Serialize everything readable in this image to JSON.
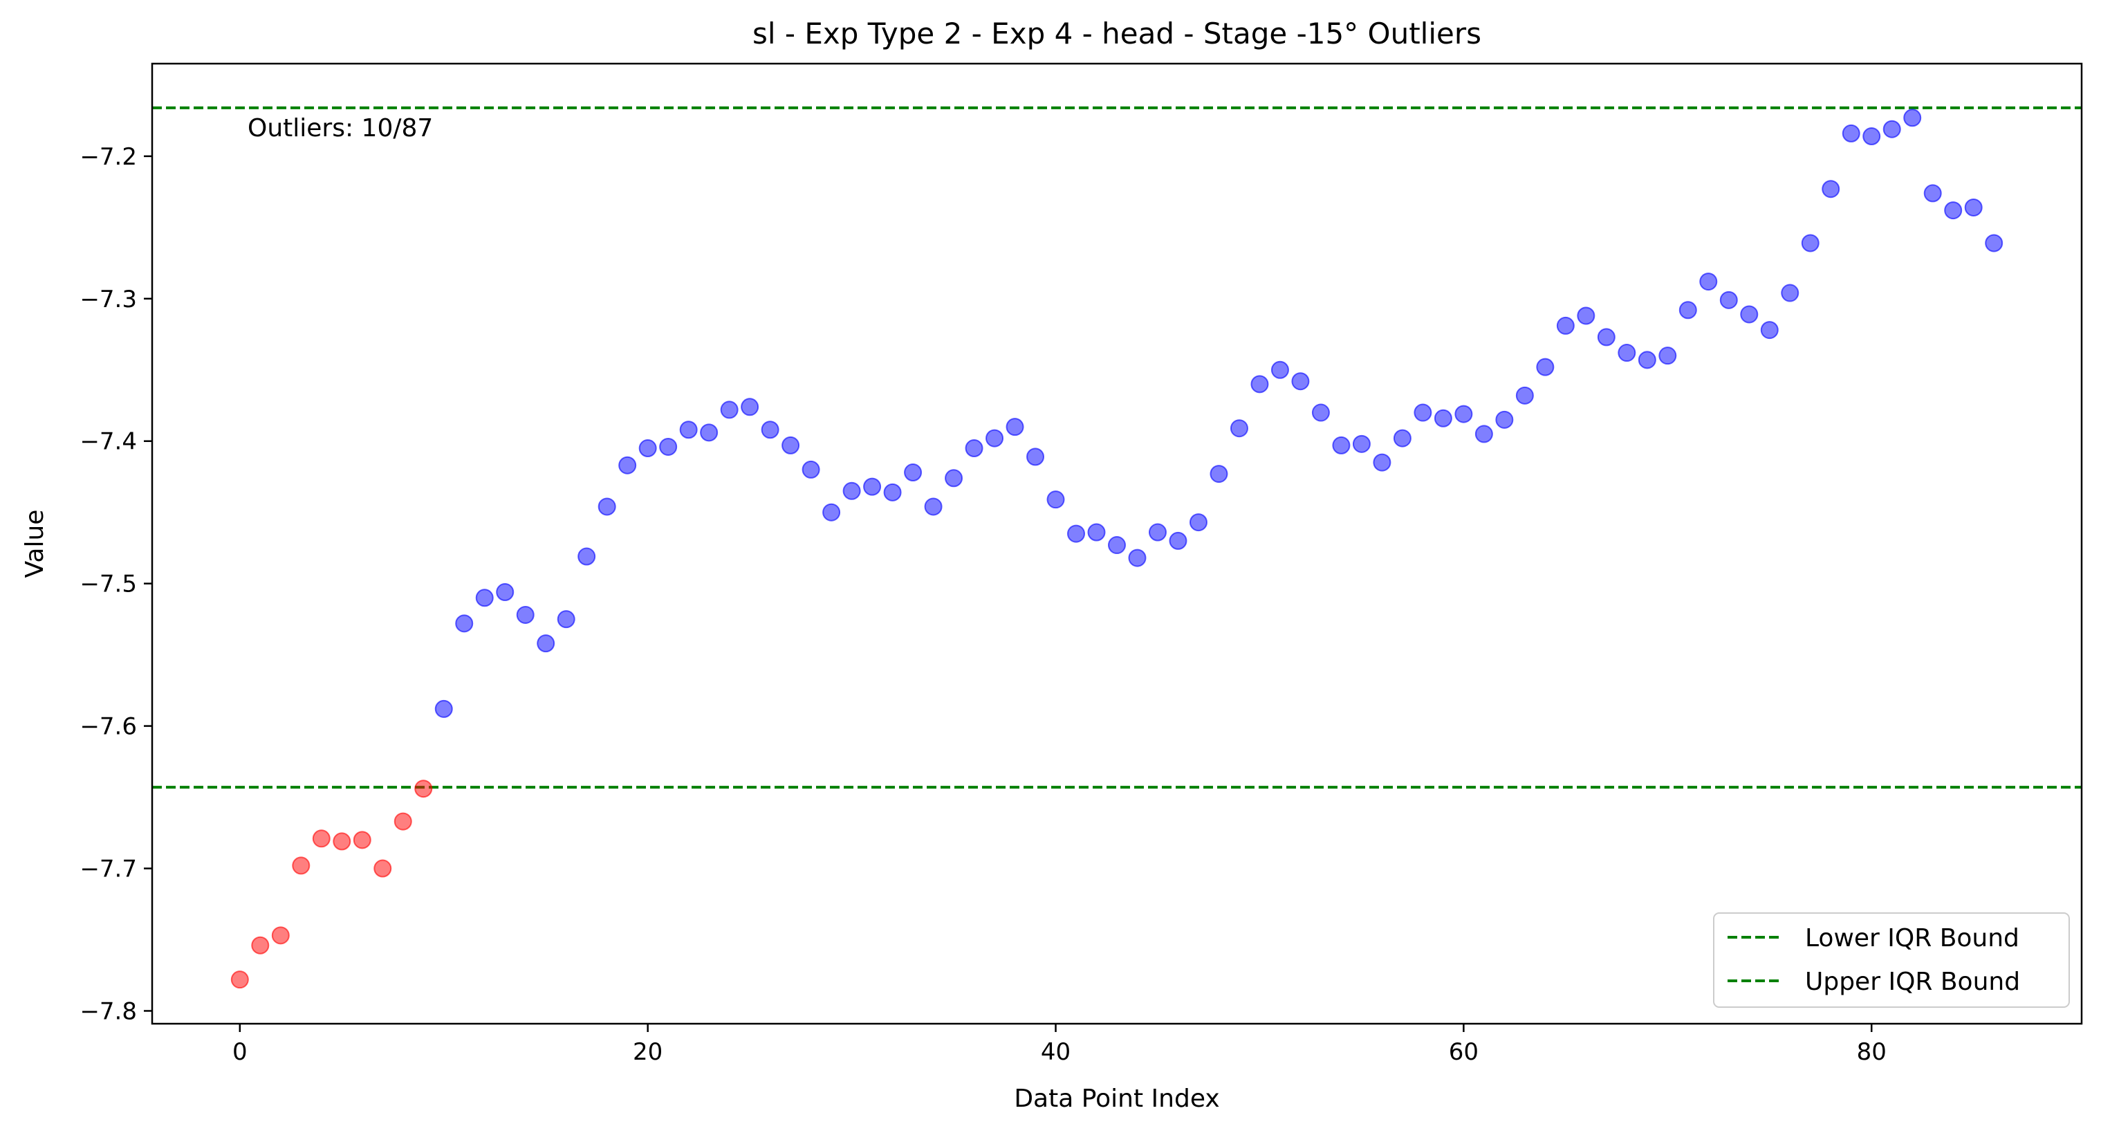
{
  "chart_data": {
    "type": "scatter",
    "title": "sl - Exp Type 2 - Exp 4 - head - Stage -15° Outliers",
    "xlabel": "Data Point Index",
    "ylabel": "Value",
    "xlim": [
      -4.3,
      90.3
    ],
    "ylim": [
      -7.809,
      -7.135
    ],
    "x_ticks": [
      0,
      20,
      40,
      60,
      80
    ],
    "y_ticks": [
      -7.8,
      -7.7,
      -7.6,
      -7.5,
      -7.4,
      -7.3,
      -7.2
    ],
    "x_tick_labels": [
      "0",
      "20",
      "40",
      "60",
      "80"
    ],
    "y_tick_labels": [
      "−7.8",
      "−7.7",
      "−7.6",
      "−7.5",
      "−7.4",
      "−7.3",
      "−7.2"
    ],
    "annotation": "Outliers: 10/87",
    "colors": {
      "outlier": "#ff0000",
      "normal": "#0000ff",
      "bound": "#008000"
    },
    "bounds": [
      {
        "name": "Lower IQR Bound",
        "value": -7.643
      },
      {
        "name": "Upper IQR Bound",
        "value": -7.166
      }
    ],
    "legend_position": "lower-right",
    "grid": false,
    "series": [
      {
        "name": "",
        "role": "outlier",
        "x": [
          0,
          1,
          2,
          3,
          4,
          5,
          6,
          7,
          8,
          9
        ],
        "y": [
          -7.778,
          -7.754,
          -7.747,
          -7.698,
          -7.679,
          -7.681,
          -7.68,
          -7.7,
          -7.667,
          -7.644
        ]
      },
      {
        "name": "",
        "role": "normal",
        "x": [
          10,
          11,
          12,
          13,
          14,
          15,
          16,
          17,
          18,
          19,
          20,
          21,
          22,
          23,
          24,
          25,
          26,
          27,
          28,
          29,
          30,
          31,
          32,
          33,
          34,
          35,
          36,
          37,
          38,
          39,
          40,
          41,
          42,
          43,
          44,
          45,
          46,
          47,
          48,
          49,
          50,
          51,
          52,
          53,
          54,
          55,
          56,
          57,
          58,
          59,
          60,
          61,
          62,
          63,
          64,
          65,
          66,
          67,
          68,
          69,
          70,
          71,
          72,
          73,
          74,
          75,
          76,
          77,
          78,
          79,
          80,
          81,
          82,
          83,
          84,
          85,
          86
        ],
        "y": [
          -7.588,
          -7.528,
          -7.51,
          -7.506,
          -7.522,
          -7.542,
          -7.525,
          -7.481,
          -7.446,
          -7.417,
          -7.405,
          -7.404,
          -7.392,
          -7.394,
          -7.378,
          -7.376,
          -7.392,
          -7.403,
          -7.42,
          -7.45,
          -7.435,
          -7.432,
          -7.436,
          -7.422,
          -7.446,
          -7.426,
          -7.405,
          -7.398,
          -7.39,
          -7.411,
          -7.441,
          -7.465,
          -7.464,
          -7.473,
          -7.482,
          -7.464,
          -7.47,
          -7.457,
          -7.423,
          -7.391,
          -7.36,
          -7.35,
          -7.358,
          -7.38,
          -7.403,
          -7.402,
          -7.415,
          -7.398,
          -7.38,
          -7.384,
          -7.381,
          -7.395,
          -7.385,
          -7.368,
          -7.348,
          -7.319,
          -7.312,
          -7.327,
          -7.338,
          -7.343,
          -7.34,
          -7.308,
          -7.288,
          -7.301,
          -7.311,
          -7.322,
          -7.296,
          -7.261,
          -7.223,
          -7.184,
          -7.186,
          -7.181,
          -7.173,
          -7.226,
          -7.238,
          -7.236,
          -7.261
        ]
      }
    ]
  }
}
